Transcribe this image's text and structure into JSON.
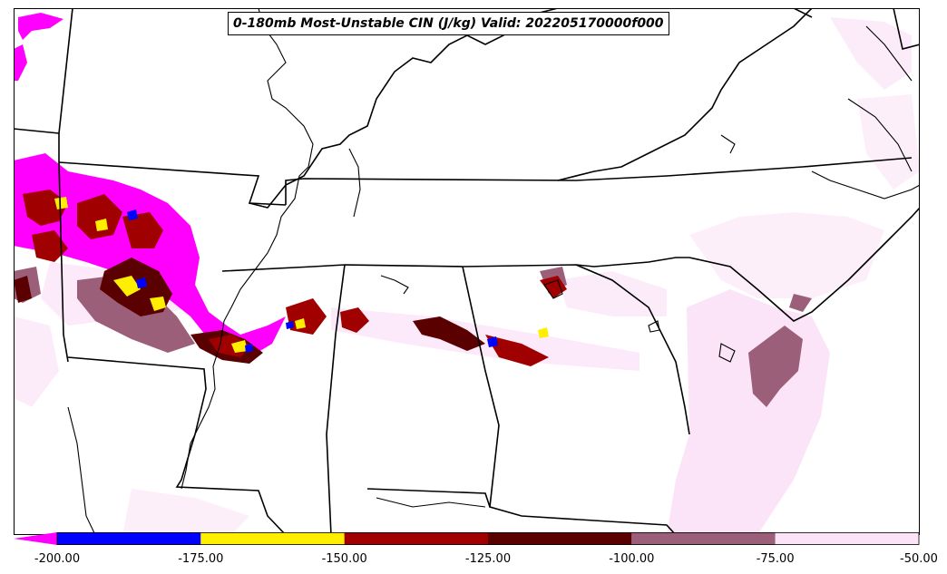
{
  "title": "0-180mb Most-Unstable CIN (J/kg) Valid: 202205170000f000",
  "colorbar": {
    "ticks": [
      "-200.00",
      "-175.00",
      "-150.00",
      "-125.00",
      "-100.00",
      "-75.00",
      "-50.00"
    ],
    "bins": [
      {
        "range": [
          -200,
          -175
        ],
        "color": "#0000ff"
      },
      {
        "range": [
          -175,
          -150
        ],
        "color": "#ffee00"
      },
      {
        "range": [
          -150,
          -125
        ],
        "color": "#a00000"
      },
      {
        "range": [
          -125,
          -100
        ],
        "color": "#5a0000"
      },
      {
        "range": [
          -100,
          -75
        ],
        "color": "#9c5f7a"
      },
      {
        "range": [
          -75,
          -50
        ],
        "color": "#fbe4f7"
      }
    ],
    "under_color": "#ff00ff",
    "extend": "min"
  },
  "colors": {
    "border": "#000000",
    "light": "#fbe4f7",
    "mauve": "#9c5f7a",
    "dark": "#5a0000",
    "red": "#a00000",
    "yellow": "#ffee00",
    "blue": "#0000ff",
    "magenta": "#ff00ff"
  }
}
